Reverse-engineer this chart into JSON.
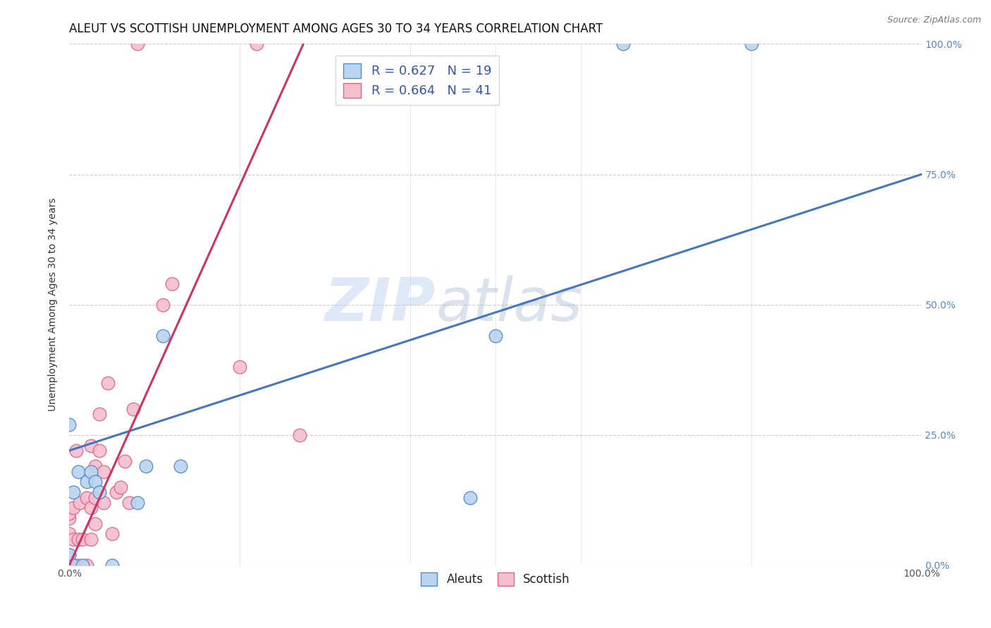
{
  "title": "ALEUT VS SCOTTISH UNEMPLOYMENT AMONG AGES 30 TO 34 YEARS CORRELATION CHART",
  "source": "Source: ZipAtlas.com",
  "ylabel": "Unemployment Among Ages 30 to 34 years",
  "xlim": [
    0,
    1.0
  ],
  "ylim": [
    0,
    1.0
  ],
  "xtick_labels": [
    "0.0%",
    "100.0%"
  ],
  "ytick_labels": [
    "0.0%",
    "25.0%",
    "50.0%",
    "75.0%",
    "100.0%"
  ],
  "ytick_positions": [
    0.0,
    0.25,
    0.5,
    0.75,
    1.0
  ],
  "background_color": "#ffffff",
  "watermark_zip": "ZIP",
  "watermark_atlas": "atlas",
  "aleuts_fill": "#b8d4ee",
  "aleuts_edge": "#5588cc",
  "scottish_fill": "#f4bece",
  "scottish_edge": "#dd6688",
  "aleuts_R": 0.627,
  "aleuts_N": 19,
  "scottish_R": 0.664,
  "scottish_N": 41,
  "aleuts_x": [
    0.0,
    0.0,
    0.005,
    0.005,
    0.01,
    0.015,
    0.02,
    0.025,
    0.03,
    0.035,
    0.05,
    0.08,
    0.09,
    0.11,
    0.13,
    0.47,
    0.5,
    0.65,
    0.8
  ],
  "aleuts_y": [
    0.27,
    0.02,
    0.0,
    0.14,
    0.18,
    0.0,
    0.16,
    0.18,
    0.16,
    0.14,
    0.0,
    0.12,
    0.19,
    0.44,
    0.19,
    0.13,
    0.44,
    1.0,
    1.0
  ],
  "scottish_x": [
    0.0,
    0.0,
    0.0,
    0.0,
    0.0,
    0.0,
    0.0,
    0.0,
    0.005,
    0.005,
    0.005,
    0.008,
    0.01,
    0.01,
    0.012,
    0.015,
    0.02,
    0.02,
    0.025,
    0.025,
    0.025,
    0.03,
    0.03,
    0.03,
    0.035,
    0.035,
    0.04,
    0.04,
    0.045,
    0.05,
    0.055,
    0.06,
    0.065,
    0.07,
    0.075,
    0.08,
    0.11,
    0.12,
    0.2,
    0.22,
    0.27
  ],
  "scottish_y": [
    0.0,
    0.0,
    0.0,
    0.0,
    0.02,
    0.06,
    0.09,
    0.1,
    0.0,
    0.05,
    0.11,
    0.22,
    0.0,
    0.05,
    0.12,
    0.05,
    0.0,
    0.13,
    0.05,
    0.11,
    0.23,
    0.08,
    0.13,
    0.19,
    0.22,
    0.29,
    0.12,
    0.18,
    0.35,
    0.06,
    0.14,
    0.15,
    0.2,
    0.12,
    0.3,
    1.0,
    0.5,
    0.54,
    0.38,
    1.0,
    0.25
  ],
  "grid_color": "#cccccc",
  "aleuts_line_color": "#4477bb",
  "scottish_line_color": "#cc3366",
  "aleuts_line_x": [
    0.0,
    1.0
  ],
  "aleuts_line_y": [
    0.22,
    0.75
  ],
  "scottish_line_x": [
    0.0,
    0.28
  ],
  "scottish_line_y": [
    0.0,
    1.02
  ],
  "title_fontsize": 12,
  "axis_label_fontsize": 10,
  "tick_fontsize": 10,
  "legend_fontsize": 13,
  "right_tick_color": "#5588cc"
}
